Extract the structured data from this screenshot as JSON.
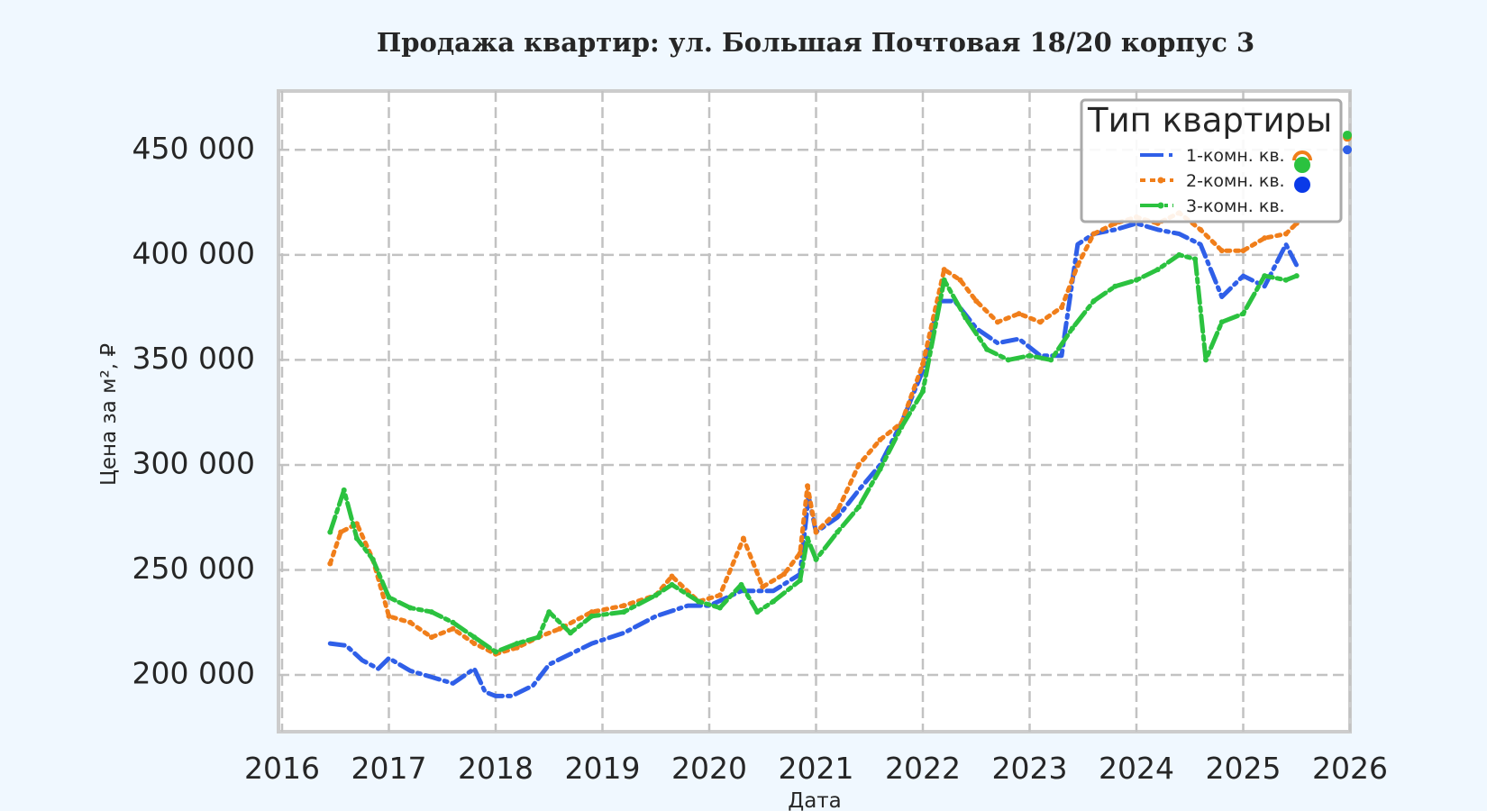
{
  "chart_data": {
    "type": "line",
    "title": "Продажа квартир: ул. Большая Почтовая 18/20 корпус 3",
    "xlabel": "Дата",
    "ylabel": "Цена за м², ₽",
    "xlim": [
      2016,
      2026
    ],
    "ylim": [
      173000,
      478000
    ],
    "x_ticks": [
      "2016",
      "2017",
      "2018",
      "2019",
      "2020",
      "2021",
      "2022",
      "2023",
      "2024",
      "2025",
      "2026"
    ],
    "y_ticks": [
      "200 000",
      "250 000",
      "300 000",
      "350 000",
      "400 000",
      "450 000"
    ],
    "y_tick_values": [
      200000,
      250000,
      300000,
      350000,
      400000,
      450000
    ],
    "grid": true,
    "legend": {
      "title": "Тип квартиры",
      "position": "upper right",
      "entries": [
        "1-комн. кв.",
        "2-комн. кв.",
        "3-комн. кв."
      ]
    },
    "series": [
      {
        "name": "1-комн. кв.",
        "color": "#2f5fe8",
        "linestyle": "dashdot",
        "x": [
          2016.45,
          2016.6,
          2016.75,
          2016.9,
          2017.0,
          2017.2,
          2017.4,
          2017.6,
          2017.8,
          2017.9,
          2018.0,
          2018.15,
          2018.35,
          2018.5,
          2018.7,
          2018.9,
          2019.2,
          2019.5,
          2019.8,
          2020.0,
          2020.3,
          2020.6,
          2020.85,
          2020.93,
          2021.0,
          2021.2,
          2021.4,
          2021.6,
          2021.8,
          2022.0,
          2022.15,
          2022.3,
          2022.5,
          2022.7,
          2022.9,
          2023.1,
          2023.3,
          2023.45,
          2023.6,
          2023.8,
          2024.0,
          2024.2,
          2024.4,
          2024.6,
          2024.8,
          2025.0,
          2025.2,
          2025.4,
          2025.5,
          2026.0
        ],
        "y": [
          215000,
          214000,
          207000,
          203000,
          208000,
          202000,
          199000,
          196000,
          203000,
          192000,
          190000,
          190000,
          195000,
          205000,
          210000,
          215000,
          220000,
          228000,
          233000,
          233000,
          240000,
          240000,
          248000,
          285000,
          268000,
          275000,
          288000,
          300000,
          320000,
          345000,
          378000,
          378000,
          365000,
          358000,
          360000,
          352000,
          352000,
          405000,
          410000,
          412000,
          415000,
          412000,
          410000,
          405000,
          380000,
          390000,
          385000,
          405000,
          395000,
          450000
        ]
      },
      {
        "name": "2-комн. кв.",
        "color": "#f07e1a",
        "linestyle": "dotted",
        "x": [
          2016.45,
          2016.55,
          2016.7,
          2016.85,
          2017.0,
          2017.2,
          2017.4,
          2017.6,
          2017.8,
          2018.0,
          2018.2,
          2018.4,
          2018.6,
          2018.9,
          2019.2,
          2019.5,
          2019.65,
          2019.9,
          2020.1,
          2020.32,
          2020.5,
          2020.7,
          2020.85,
          2020.92,
          2021.0,
          2021.2,
          2021.4,
          2021.6,
          2021.8,
          2022.0,
          2022.2,
          2022.35,
          2022.5,
          2022.7,
          2022.9,
          2023.1,
          2023.3,
          2023.45,
          2023.6,
          2023.8,
          2024.0,
          2024.2,
          2024.4,
          2024.6,
          2024.8,
          2025.0,
          2025.2,
          2025.4,
          2025.5,
          2026.0
        ],
        "y": [
          253000,
          268000,
          272000,
          255000,
          228000,
          225000,
          218000,
          222000,
          215000,
          210000,
          213000,
          218000,
          222000,
          230000,
          233000,
          238000,
          247000,
          235000,
          238000,
          265000,
          242000,
          248000,
          258000,
          290000,
          268000,
          278000,
          300000,
          312000,
          320000,
          348000,
          393000,
          388000,
          378000,
          368000,
          372000,
          368000,
          375000,
          395000,
          410000,
          415000,
          418000,
          415000,
          420000,
          412000,
          402000,
          402000,
          408000,
          410000,
          415000,
          456000
        ]
      },
      {
        "name": "3-комн. кв.",
        "color": "#2bc23f",
        "linestyle": "dashdot-marker",
        "x": [
          2016.45,
          2016.58,
          2016.7,
          2016.85,
          2017.0,
          2017.2,
          2017.4,
          2017.6,
          2017.8,
          2018.0,
          2018.2,
          2018.4,
          2018.5,
          2018.7,
          2018.9,
          2019.2,
          2019.5,
          2019.65,
          2019.9,
          2020.1,
          2020.3,
          2020.45,
          2020.6,
          2020.85,
          2020.92,
          2021.0,
          2021.2,
          2021.4,
          2021.6,
          2021.8,
          2022.0,
          2022.2,
          2022.4,
          2022.6,
          2022.8,
          2023.0,
          2023.2,
          2023.4,
          2023.6,
          2023.8,
          2024.0,
          2024.2,
          2024.4,
          2024.55,
          2024.65,
          2024.8,
          2025.0,
          2025.2,
          2025.4,
          2025.5,
          2026.0
        ],
        "y": [
          268000,
          288000,
          265000,
          255000,
          237000,
          232000,
          230000,
          225000,
          218000,
          211000,
          215000,
          218000,
          230000,
          220000,
          228000,
          230000,
          238000,
          243000,
          235000,
          232000,
          243000,
          230000,
          235000,
          245000,
          265000,
          255000,
          268000,
          280000,
          298000,
          318000,
          335000,
          388000,
          370000,
          355000,
          350000,
          352000,
          350000,
          365000,
          378000,
          385000,
          388000,
          393000,
          400000,
          398000,
          350000,
          368000,
          372000,
          390000,
          388000,
          390000,
          457000
        ]
      }
    ]
  },
  "legend_markers": [
    {
      "shape": "half-circle",
      "color": "#f07e1a"
    },
    {
      "shape": "circle",
      "color": "#2bc23f"
    },
    {
      "shape": "circle",
      "color": "#0a3ae8"
    }
  ]
}
